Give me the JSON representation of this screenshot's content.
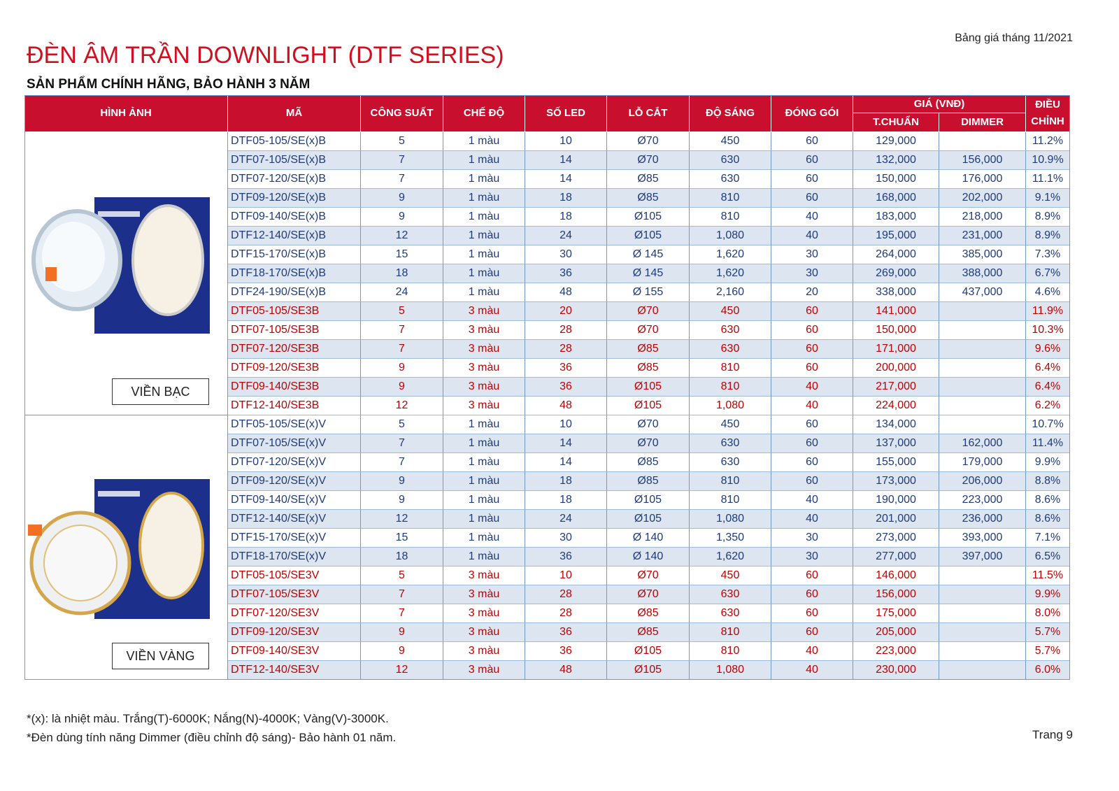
{
  "header": {
    "date_note": "Bảng giá tháng 11/2021",
    "title": "ĐÈN ÂM TRẦN DOWNLIGHT (DTF SERIES)",
    "subtitle": "SẢN PHẨM CHÍNH HÃNG, BẢO HÀNH 3 NĂM"
  },
  "table": {
    "headers": [
      "HÌNH ẢNH",
      "MÃ",
      "CÔNG SUẤT",
      "CHẾ ĐỘ",
      "SỐ LED",
      "LỖ CẮT",
      "ĐỘ SÁNG",
      "ĐÓNG GÓI",
      "GIÁ (VNĐ)",
      "T.CHUẨN",
      "DIMMER",
      "ĐIỀU CHỈNH"
    ],
    "groups": [
      {
        "label": "VIỀN BẠC",
        "sections": [
          {
            "color": "#1f3a7a",
            "rows": [
              [
                "DTF05-105/SE(x)B",
                "5",
                "1 màu",
                "10",
                "Ø70",
                "450",
                "60",
                "129,000",
                null,
                "11.2%"
              ],
              [
                "DTF07-105/SE(x)B",
                "7",
                "1 màu",
                "14",
                "Ø70",
                "630",
                "60",
                "132,000",
                "156,000",
                "10.9%"
              ],
              [
                "DTF07-120/SE(x)B",
                "7",
                "1 màu",
                "14",
                "Ø85",
                "630",
                "60",
                "150,000",
                "176,000",
                "11.1%"
              ],
              [
                "DTF09-120/SE(x)B",
                "9",
                "1 màu",
                "18",
                "Ø85",
                "810",
                "60",
                "168,000",
                "202,000",
                "9.1%"
              ],
              [
                "DTF09-140/SE(x)B",
                "9",
                "1 màu",
                "18",
                "Ø105",
                "810",
                "40",
                "183,000",
                "218,000",
                "8.9%"
              ],
              [
                "DTF12-140/SE(x)B",
                "12",
                "1 màu",
                "24",
                "Ø105",
                "1,080",
                "40",
                "195,000",
                "231,000",
                "8.9%"
              ],
              [
                "DTF15-170/SE(x)B",
                "15",
                "1 màu",
                "30",
                "Ø 145",
                "1,620",
                "30",
                "264,000",
                "385,000",
                "7.3%"
              ],
              [
                "DTF18-170/SE(x)B",
                "18",
                "1 màu",
                "36",
                "Ø 145",
                "1,620",
                "30",
                "269,000",
                "388,000",
                "6.7%"
              ],
              [
                "DTF24-190/SE(x)B",
                "24",
                "1 màu",
                "48",
                "Ø 155",
                "2,160",
                "20",
                "338,000",
                "437,000",
                "4.6%"
              ]
            ]
          },
          {
            "color": "#c00000",
            "rows": [
              [
                "DTF05-105/SE3B",
                "5",
                "3 màu",
                "20",
                "Ø70",
                "450",
                "60",
                "141,000",
                null,
                "11.9%"
              ],
              [
                "DTF07-105/SE3B",
                "7",
                "3 màu",
                "28",
                "Ø70",
                "630",
                "60",
                "150,000",
                null,
                "10.3%"
              ],
              [
                "DTF07-120/SE3B",
                "7",
                "3 màu",
                "28",
                "Ø85",
                "630",
                "60",
                "171,000",
                null,
                "9.6%"
              ],
              [
                "DTF09-120/SE3B",
                "9",
                "3 màu",
                "36",
                "Ø85",
                "810",
                "60",
                "200,000",
                null,
                "6.4%"
              ],
              [
                "DTF09-140/SE3B",
                "9",
                "3 màu",
                "36",
                "Ø105",
                "810",
                "40",
                "217,000",
                null,
                "6.4%"
              ],
              [
                "DTF12-140/SE3B",
                "12",
                "3 màu",
                "48",
                "Ø105",
                "1,080",
                "40",
                "224,000",
                null,
                "6.2%"
              ]
            ]
          }
        ]
      },
      {
        "label": "VIỀN VÀNG",
        "sections": [
          {
            "color": "#1f3a7a",
            "rows": [
              [
                "DTF05-105/SE(x)V",
                "5",
                "1 màu",
                "10",
                "Ø70",
                "450",
                "60",
                "134,000",
                null,
                "10.7%"
              ],
              [
                "DTF07-105/SE(x)V",
                "7",
                "1 màu",
                "14",
                "Ø70",
                "630",
                "60",
                "137,000",
                "162,000",
                "11.4%"
              ],
              [
                "DTF07-120/SE(x)V",
                "7",
                "1 màu",
                "14",
                "Ø85",
                "630",
                "60",
                "155,000",
                "179,000",
                "9.9%"
              ],
              [
                "DTF09-120/SE(x)V",
                "9",
                "1 màu",
                "18",
                "Ø85",
                "810",
                "60",
                "173,000",
                "206,000",
                "8.8%"
              ],
              [
                "DTF09-140/SE(x)V",
                "9",
                "1 màu",
                "18",
                "Ø105",
                "810",
                "40",
                "190,000",
                "223,000",
                "8.6%"
              ],
              [
                "DTF12-140/SE(x)V",
                "12",
                "1 màu",
                "24",
                "Ø105",
                "1,080",
                "40",
                "201,000",
                "236,000",
                "8.6%"
              ],
              [
                "DTF15-170/SE(x)V",
                "15",
                "1 màu",
                "30",
                "Ø 140",
                "1,350",
                "30",
                "273,000",
                "393,000",
                "7.1%"
              ],
              [
                "DTF18-170/SE(x)V",
                "18",
                "1 màu",
                "36",
                "Ø 140",
                "1,620",
                "30",
                "277,000",
                "397,000",
                "6.5%"
              ]
            ]
          },
          {
            "color": "#c00000",
            "rows": [
              [
                "DTF05-105/SE3V",
                "5",
                "3 màu",
                "10",
                "Ø70",
                "450",
                "60",
                "146,000",
                null,
                "11.5%"
              ],
              [
                "DTF07-105/SE3V",
                "7",
                "3 màu",
                "28",
                "Ø70",
                "630",
                "60",
                "156,000",
                null,
                "9.9%"
              ],
              [
                "DTF07-120/SE3V",
                "7",
                "3 màu",
                "28",
                "Ø85",
                "630",
                "60",
                "175,000",
                null,
                "8.0%"
              ],
              [
                "DTF09-120/SE3V",
                "9",
                "3 màu",
                "36",
                "Ø85",
                "810",
                "60",
                "205,000",
                null,
                "5.7%"
              ],
              [
                "DTF09-140/SE3V",
                "9",
                "3 màu",
                "36",
                "Ø105",
                "810",
                "40",
                "223,000",
                null,
                "5.7%"
              ],
              [
                "DTF12-140/SE3V",
                "12",
                "3 màu",
                "48",
                "Ø105",
                "1,080",
                "40",
                "230,000",
                null,
                "6.0%"
              ]
            ]
          }
        ]
      }
    ]
  },
  "footer": {
    "notes": [
      "*(x): là nhiệt màu. Trắng(T)-6000K; Nắng(N)-4000K; Vàng(V)-3000K.",
      "*Đèn dùng tính năng Dimmer (điều chỉnh độ sáng)- Bảo hành 01 năm."
    ],
    "page": "Trang 9"
  }
}
